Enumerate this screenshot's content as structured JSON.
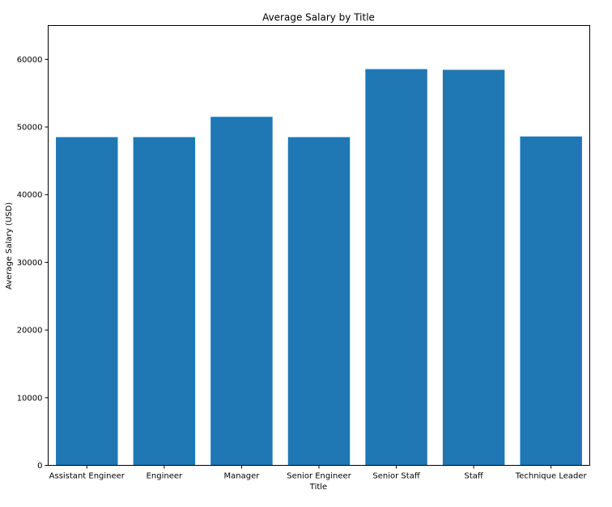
{
  "chart_data": {
    "type": "bar",
    "title": "Average Salary by Title",
    "xlabel": "Title",
    "ylabel": "Average Salary (USD)",
    "categories": [
      "Assistant Engineer",
      "Engineer",
      "Manager",
      "Senior Engineer",
      "Senior Staff",
      "Staff",
      "Technique Leader"
    ],
    "values": [
      48500,
      48500,
      51500,
      48500,
      58550,
      58450,
      48600
    ],
    "ylim": [
      0,
      65000
    ],
    "yticks": [
      0,
      10000,
      20000,
      30000,
      40000,
      50000,
      60000
    ],
    "ytick_labels": [
      "0",
      "10000",
      "20000",
      "30000",
      "40000",
      "50000",
      "60000"
    ],
    "bar_color": "#1f77b4",
    "grid": false,
    "legend": "none"
  }
}
